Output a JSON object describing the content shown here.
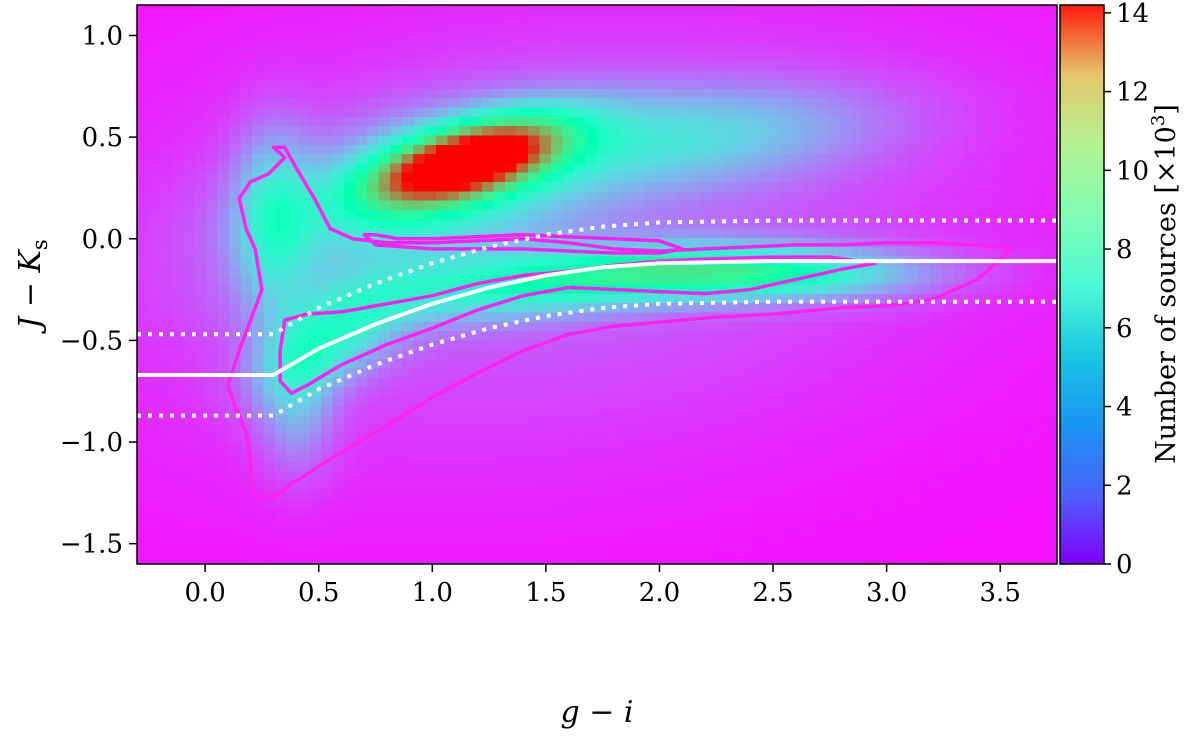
{
  "chart_data": {
    "type": "heatmap",
    "title": "",
    "xlabel": "g − i",
    "ylabel": "J − K",
    "ylabel_subscript": "s",
    "xlim": [
      -0.3,
      3.75
    ],
    "ylim": [
      -1.6,
      1.15
    ],
    "x_ticks": [
      0.0,
      0.5,
      1.0,
      1.5,
      2.0,
      2.5,
      3.0,
      3.5
    ],
    "x_tick_labels": [
      "0.0",
      "0.5",
      "1.0",
      "1.5",
      "2.0",
      "2.5",
      "3.0",
      "3.5"
    ],
    "y_ticks": [
      1.0,
      0.5,
      0.0,
      -0.5,
      -1.0,
      -1.5
    ],
    "y_tick_labels": [
      "1.0",
      "0.5",
      "0.0",
      "−0.5",
      "−1.0",
      "−1.5"
    ],
    "grid": false,
    "colormap": "rainbow",
    "colorbar": {
      "label": "Number of sources [×10",
      "label_exponent": "3",
      "label_close": "]",
      "range": [
        0,
        14.2
      ],
      "ticks": [
        0,
        2,
        4,
        6,
        8,
        10,
        12,
        14
      ],
      "tick_labels": [
        "0",
        "2",
        "4",
        "6",
        "8",
        "10",
        "12",
        "14"
      ]
    },
    "density_components": [
      {
        "cx": 1.15,
        "cy": 0.38,
        "sx": 0.28,
        "sy": 0.14,
        "rho": 0.55,
        "peak": 13.8
      },
      {
        "cx": 0.95,
        "cy": 0.2,
        "sx": 0.5,
        "sy": 0.28,
        "rho": 0.4,
        "peak": 4.0
      },
      {
        "cx": 2.1,
        "cy": 0.5,
        "sx": 0.6,
        "sy": 0.18,
        "rho": 0.3,
        "peak": 3.2
      },
      {
        "cx": 2.4,
        "cy": -0.17,
        "sx": 0.5,
        "sy": 0.09,
        "rho": 0.0,
        "peak": 6.0
      },
      {
        "cx": 1.5,
        "cy": -0.22,
        "sx": 0.55,
        "sy": 0.12,
        "rho": 0.45,
        "peak": 4.5
      },
      {
        "cx": 0.55,
        "cy": -0.5,
        "sx": 0.22,
        "sy": 0.18,
        "rho": 0.5,
        "peak": 4.0
      },
      {
        "cx": 0.3,
        "cy": 0.1,
        "sx": 0.12,
        "sy": 0.3,
        "rho": 0.0,
        "peak": 3.5
      },
      {
        "cx": 0.4,
        "cy": -0.8,
        "sx": 0.12,
        "sy": 0.25,
        "rho": 0.0,
        "peak": 2.5
      },
      {
        "cx": 1.5,
        "cy": 0.0,
        "sx": 1.4,
        "sy": 0.8,
        "rho": 0.2,
        "peak": 1.6
      }
    ],
    "reference_line": {
      "color": "#ffffff",
      "x": [
        -0.3,
        0.3,
        0.5,
        0.75,
        1.0,
        1.25,
        1.5,
        1.75,
        2.0,
        2.25,
        2.5,
        3.75
      ],
      "y": [
        -0.67,
        -0.67,
        -0.54,
        -0.42,
        -0.32,
        -0.24,
        -0.18,
        -0.14,
        -0.12,
        -0.115,
        -0.11,
        -0.11
      ]
    },
    "reference_band_upper": {
      "color": "#ffffff",
      "style": "dotted",
      "x": [
        -0.3,
        0.3,
        0.5,
        0.75,
        1.0,
        1.25,
        1.5,
        1.75,
        2.0,
        2.25,
        2.5,
        3.75
      ],
      "y": [
        -0.47,
        -0.47,
        -0.34,
        -0.22,
        -0.12,
        -0.04,
        0.02,
        0.06,
        0.08,
        0.085,
        0.09,
        0.09
      ]
    },
    "reference_band_lower": {
      "color": "#ffffff",
      "style": "dotted",
      "x": [
        -0.3,
        0.3,
        0.5,
        0.75,
        1.0,
        1.25,
        1.5,
        1.75,
        2.0,
        2.25,
        2.5,
        3.75
      ],
      "y": [
        -0.87,
        -0.87,
        -0.74,
        -0.62,
        -0.52,
        -0.44,
        -0.38,
        -0.34,
        -0.32,
        -0.315,
        -0.31,
        -0.31
      ]
    },
    "contours": [
      {
        "color": "#ff22ee",
        "x": [
          0.35,
          0.45,
          0.6,
          0.8,
          1.0,
          1.2,
          1.4,
          1.6,
          1.8,
          2.0,
          2.2,
          2.5,
          2.75,
          2.95,
          2.8,
          2.6,
          2.4,
          2.2,
          2.0,
          1.6,
          1.4,
          1.2,
          1.0,
          0.8,
          0.6,
          0.45,
          0.38,
          0.33,
          0.33,
          0.35
        ],
        "y": [
          -0.4,
          -0.37,
          -0.36,
          -0.32,
          -0.28,
          -0.22,
          -0.18,
          -0.16,
          -0.13,
          -0.11,
          -0.1,
          -0.09,
          -0.09,
          -0.12,
          -0.15,
          -0.2,
          -0.25,
          -0.27,
          -0.26,
          -0.24,
          -0.28,
          -0.35,
          -0.44,
          -0.52,
          -0.62,
          -0.72,
          -0.76,
          -0.7,
          -0.55,
          -0.4
        ]
      },
      {
        "color": "#ff22ee",
        "x": [
          0.3,
          0.35,
          0.28,
          0.2,
          0.15,
          0.18,
          0.22,
          0.25,
          0.2,
          0.15,
          0.1,
          0.13,
          0.18,
          0.2,
          0.2,
          0.23,
          0.32,
          0.38,
          0.42,
          0.5,
          0.6,
          0.8,
          1.0,
          1.2,
          1.4,
          1.6,
          1.8,
          2.0,
          2.2,
          2.5,
          2.8,
          3.0,
          3.2,
          3.4,
          3.5,
          3.55,
          3.4,
          3.2,
          3.0,
          2.8,
          2.6,
          2.4,
          2.2,
          2.0,
          1.8,
          1.6,
          1.4,
          1.2,
          1.0,
          0.8,
          0.65,
          0.55,
          0.48,
          0.4,
          0.35,
          0.3
        ],
        "y": [
          0.45,
          0.4,
          0.32,
          0.28,
          0.2,
          0.05,
          -0.05,
          -0.25,
          -0.4,
          -0.55,
          -0.72,
          -0.82,
          -0.95,
          -1.1,
          -1.22,
          -1.28,
          -1.26,
          -1.2,
          -1.18,
          -1.12,
          -1.05,
          -0.92,
          -0.78,
          -0.66,
          -0.55,
          -0.47,
          -0.43,
          -0.41,
          -0.39,
          -0.37,
          -0.34,
          -0.33,
          -0.3,
          -0.2,
          -0.1,
          -0.05,
          -0.03,
          -0.02,
          -0.02,
          -0.03,
          -0.03,
          -0.04,
          -0.05,
          -0.06,
          -0.05,
          -0.02,
          0.0,
          -0.01,
          -0.02,
          -0.02,
          0.0,
          0.05,
          0.2,
          0.35,
          0.45,
          0.45
        ]
      },
      {
        "color": "#ff22ee",
        "x": [
          0.7,
          0.75,
          1.0,
          1.2,
          1.4,
          1.6,
          1.8,
          2.0,
          2.1,
          2.0,
          1.8,
          1.6,
          1.4,
          1.2,
          1.0,
          0.85,
          0.75,
          0.7
        ],
        "y": [
          0.02,
          -0.03,
          -0.05,
          -0.05,
          -0.05,
          -0.06,
          -0.07,
          -0.07,
          -0.05,
          -0.01,
          0.0,
          0.01,
          0.02,
          0.01,
          0.0,
          0.0,
          0.02,
          0.02
        ]
      }
    ]
  }
}
